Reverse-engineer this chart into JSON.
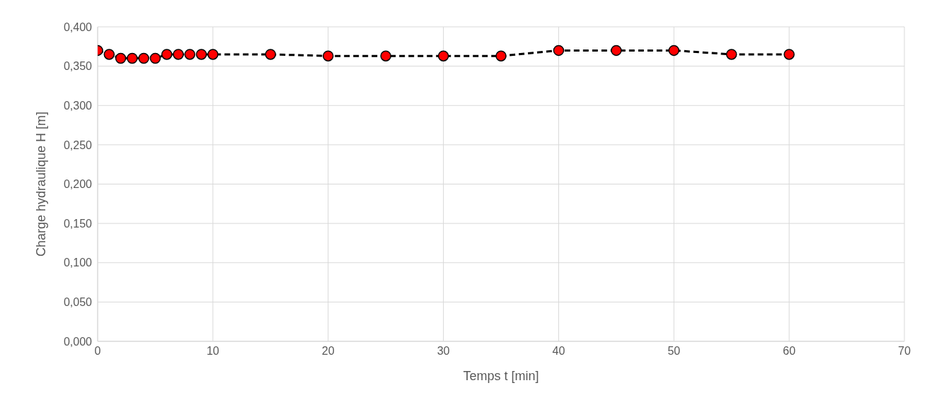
{
  "chart_data": {
    "type": "line",
    "xlabel": "Temps t [min]",
    "ylabel": "Charge hydraulique H [m]",
    "x": [
      0,
      1,
      2,
      3,
      4,
      5,
      6,
      7,
      8,
      9,
      10,
      15,
      20,
      25,
      30,
      35,
      40,
      45,
      50,
      55,
      60
    ],
    "series": [
      {
        "color": "#ff0000",
        "values": [
          0.37,
          0.365,
          0.36,
          0.36,
          0.36,
          0.36,
          0.365,
          0.365,
          0.365,
          0.365,
          0.365,
          0.365,
          0.363,
          0.363,
          0.363,
          0.363,
          0.37,
          0.37,
          0.37,
          0.365,
          0.365
        ]
      }
    ],
    "xlim": [
      0,
      70
    ],
    "xticks": [
      0,
      10,
      20,
      30,
      40,
      50,
      60,
      70
    ],
    "ylim": [
      0,
      0.4
    ],
    "yticks": [
      {
        "value": 0,
        "label": "0,000"
      },
      {
        "value": 0.05,
        "label": "0,050"
      },
      {
        "value": 0.1,
        "label": "0,100"
      },
      {
        "value": 0.15,
        "label": "0,150"
      },
      {
        "value": 0.2,
        "label": "0,200"
      },
      {
        "value": 0.25,
        "label": "0,250"
      },
      {
        "value": 0.3,
        "label": "0,300"
      },
      {
        "value": 0.35,
        "label": "0,350"
      },
      {
        "value": 0.4,
        "label": "0,400"
      }
    ],
    "grid": true,
    "marker": "circle",
    "line_style": "dashed"
  }
}
